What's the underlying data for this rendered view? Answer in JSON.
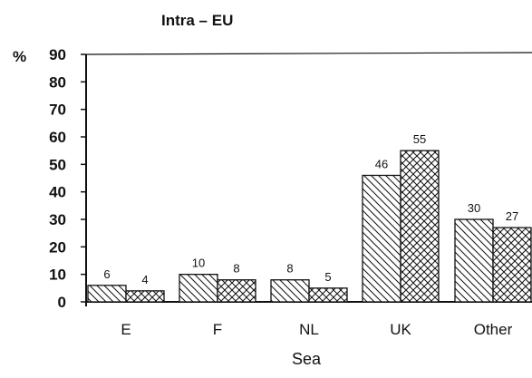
{
  "chart_data": {
    "type": "bar",
    "title": "Intra – EU",
    "xlabel": "Sea",
    "ylabel": "%",
    "ylim": [
      0,
      90
    ],
    "yticks": [
      0,
      10,
      20,
      30,
      40,
      50,
      60,
      70,
      80,
      90
    ],
    "categories": [
      "E",
      "F",
      "NL",
      "UK",
      "Other"
    ],
    "series": [
      {
        "pattern": "diagonal-hatch",
        "values": [
          6,
          10,
          8,
          46,
          30
        ]
      },
      {
        "pattern": "cross-hatch",
        "values": [
          4,
          8,
          5,
          55,
          27
        ]
      }
    ],
    "grid": false,
    "legend": "none"
  }
}
